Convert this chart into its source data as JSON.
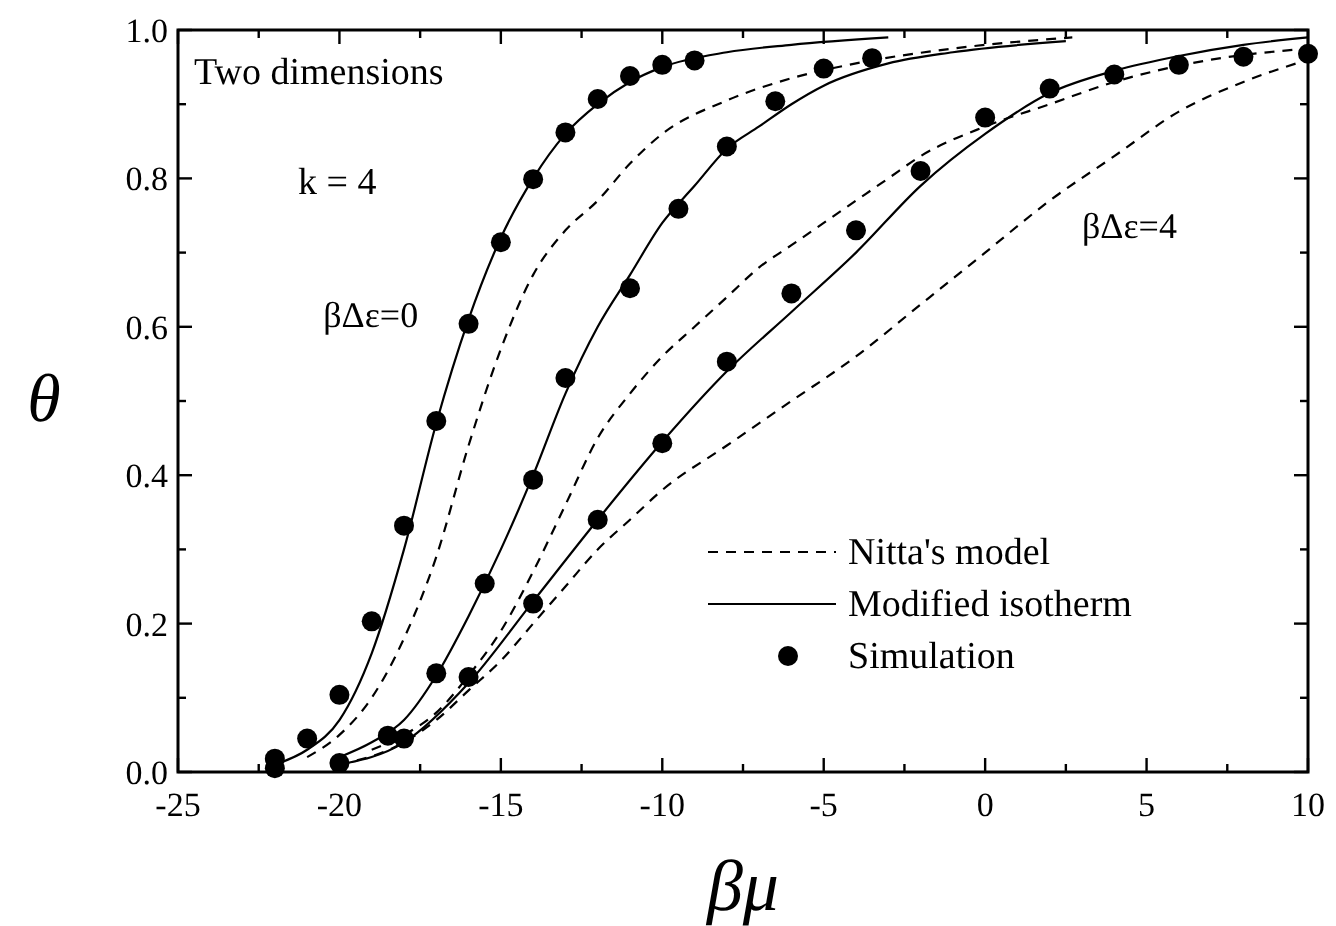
{
  "chart_data": {
    "type": "line",
    "xlabel": "βμ",
    "ylabel": "θ",
    "xlim": [
      -25,
      10
    ],
    "ylim": [
      0,
      1
    ],
    "xticks": [
      -25,
      {
        "value": -22.5,
        "label": null
      },
      -20,
      {
        "value": -17.5,
        "label": null
      },
      -15,
      {
        "value": -12.5,
        "label": null
      },
      -10,
      {
        "value": -7.5,
        "label": null
      },
      -5,
      {
        "value": -2.5,
        "label": null
      },
      0,
      {
        "value": 2.5,
        "label": null
      },
      5,
      {
        "value": 7.5,
        "label": null
      },
      10
    ],
    "yticks": [
      {
        "value": 0,
        "label": "0.0"
      },
      {
        "value": 0.1,
        "label": null
      },
      {
        "value": 0.2,
        "label": "0.2"
      },
      {
        "value": 0.3,
        "label": null
      },
      {
        "value": 0.4,
        "label": "0.4"
      },
      {
        "value": 0.5,
        "label": null
      },
      {
        "value": 0.6,
        "label": "0.6"
      },
      {
        "value": 0.7,
        "label": null
      },
      {
        "value": 0.8,
        "label": "0.8"
      },
      {
        "value": 0.9,
        "label": null
      },
      {
        "value": 1,
        "label": "1.0"
      }
    ],
    "grid": false,
    "legend": "bottom right",
    "annotations": [
      "Two dimensions",
      "k = 4",
      "βΔε=0",
      "βΔε=4"
    ],
    "series": [
      {
        "name": "Nitta's model",
        "line_style": "dashed",
        "color": "#000000",
        "x": [
          -21,
          -20,
          -19,
          -18,
          -17,
          -16,
          -15,
          -14,
          -13,
          -12,
          -11,
          -10,
          -8,
          -6,
          -4,
          -1,
          2.7
        ],
        "values": [
          0.02,
          0.05,
          0.1,
          0.18,
          0.29,
          0.44,
          0.57,
          0.67,
          0.73,
          0.77,
          0.82,
          0.86,
          0.905,
          0.935,
          0.955,
          0.975,
          0.99
        ]
      },
      {
        "name": "Modified isotherm",
        "line_style": "solid",
        "color": "#000000",
        "x": [
          -22,
          -21,
          -20,
          -19,
          -18,
          -17,
          -16,
          -15,
          -14,
          -13,
          -12,
          -11,
          -10,
          -8,
          -6,
          -3
        ],
        "values": [
          0.01,
          0.03,
          0.07,
          0.16,
          0.3,
          0.47,
          0.61,
          0.72,
          0.8,
          0.86,
          0.9,
          0.93,
          0.95,
          0.97,
          0.98,
          0.99
        ]
      },
      {
        "name": "Simulation",
        "type": "scatter",
        "marker": "circle",
        "color": "#000000",
        "x": [
          -22,
          -21,
          -20,
          -19,
          -18,
          -17,
          -16,
          -15,
          -14,
          -13,
          -12,
          -11,
          -10,
          -9
        ],
        "values": [
          0.018,
          0.045,
          0.104,
          0.203,
          0.332,
          0.473,
          0.604,
          0.714,
          0.799,
          0.862,
          0.907,
          0.938,
          0.953,
          0.959
        ]
      },
      {
        "line_style": "dashed",
        "color": "#000000",
        "x": [
          -19,
          -18,
          -17,
          -16,
          -15,
          -14,
          -13,
          -12,
          -11,
          -10,
          -9,
          -8,
          -7,
          -6,
          -5,
          -4,
          -3,
          -2,
          0,
          2,
          4,
          7,
          10
        ],
        "values": [
          0.03,
          0.05,
          0.08,
          0.13,
          0.19,
          0.27,
          0.36,
          0.45,
          0.51,
          0.56,
          0.6,
          0.64,
          0.68,
          0.71,
          0.74,
          0.77,
          0.8,
          0.83,
          0.87,
          0.9,
          0.93,
          0.96,
          0.975
        ]
      },
      {
        "line_style": "solid",
        "color": "#000000",
        "x": [
          -20,
          -19,
          -18,
          -17,
          -16,
          -15,
          -14,
          -13,
          -12,
          -11,
          -10,
          -9,
          -8,
          -7,
          -6,
          -5,
          -3,
          -1,
          2.5
        ],
        "values": [
          0.02,
          0.04,
          0.07,
          0.13,
          0.21,
          0.3,
          0.4,
          0.51,
          0.6,
          0.67,
          0.74,
          0.79,
          0.84,
          0.87,
          0.9,
          0.925,
          0.955,
          0.97,
          0.985
        ]
      },
      {
        "type": "scatter",
        "marker": "circle",
        "color": "#000000",
        "x": [
          -20,
          -18.5,
          -17,
          -15.5,
          -14,
          -13,
          -11,
          -9.5,
          -8,
          -6.5,
          -5,
          -3.5
        ],
        "values": [
          0.012,
          0.049,
          0.133,
          0.254,
          0.394,
          0.531,
          0.652,
          0.759,
          0.843,
          0.904,
          0.948,
          0.962
        ]
      },
      {
        "line_style": "dashed",
        "color": "#000000",
        "x": [
          -20,
          -18,
          -17,
          -16,
          -15,
          -14,
          -13,
          -12,
          -11,
          -10,
          -8,
          -6,
          -4,
          -2,
          0,
          2,
          4,
          6,
          8,
          10
        ],
        "values": [
          0.01,
          0.04,
          0.07,
          0.11,
          0.15,
          0.2,
          0.25,
          0.3,
          0.34,
          0.38,
          0.44,
          0.5,
          0.56,
          0.63,
          0.7,
          0.77,
          0.83,
          0.89,
          0.93,
          0.96
        ]
      },
      {
        "line_style": "solid",
        "color": "#000000",
        "x": [
          -20,
          -18,
          -16,
          -14,
          -12,
          -10,
          -8,
          -6,
          -4,
          -2,
          0,
          2,
          4,
          6,
          8,
          10
        ],
        "values": [
          0.01,
          0.04,
          0.12,
          0.23,
          0.34,
          0.445,
          0.54,
          0.62,
          0.7,
          0.79,
          0.86,
          0.915,
          0.945,
          0.965,
          0.98,
          0.99
        ]
      },
      {
        "type": "scatter",
        "marker": "circle",
        "color": "#000000",
        "x": [
          -22,
          -18,
          -16,
          -14,
          -12,
          -10,
          -8,
          -6,
          -4,
          -2,
          0,
          2,
          4,
          6,
          8,
          10
        ],
        "values": [
          0.005,
          0.045,
          0.128,
          0.227,
          0.34,
          0.443,
          0.553,
          0.645,
          0.73,
          0.81,
          0.882,
          0.921,
          0.94,
          0.953,
          0.964,
          0.968
        ]
      }
    ]
  }
}
